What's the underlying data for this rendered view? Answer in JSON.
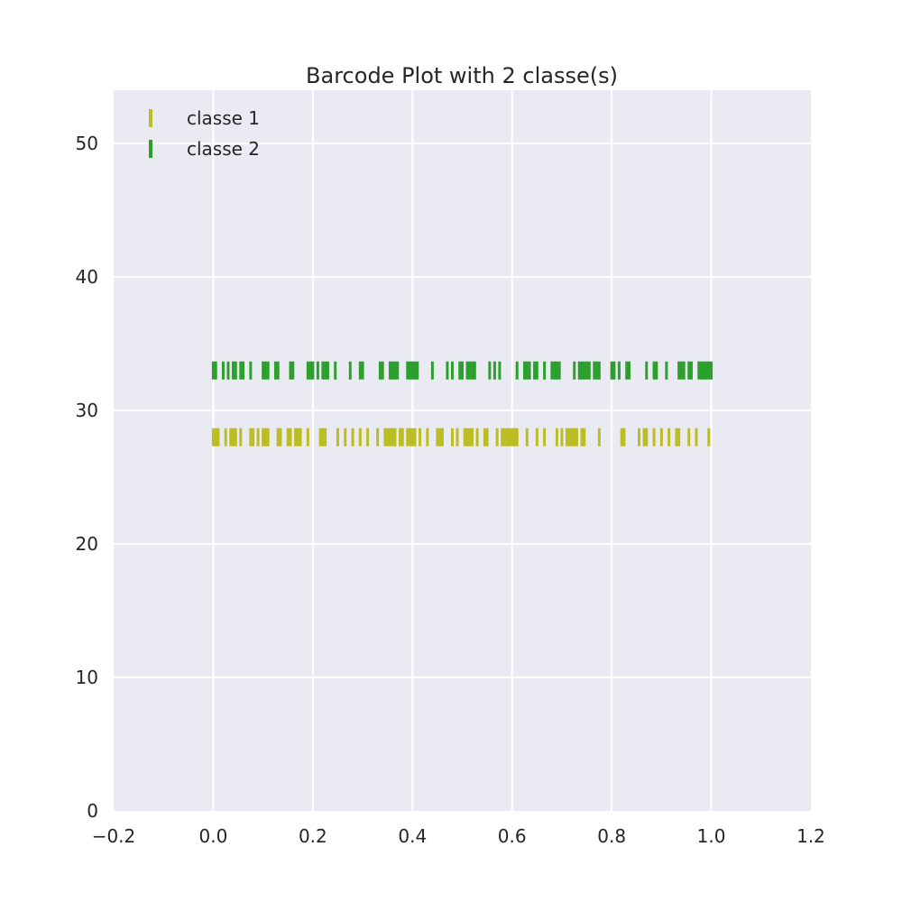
{
  "chart_data": {
    "type": "scatter",
    "title": "Barcode Plot with 2 classe(s)",
    "xlabel": "",
    "ylabel": "",
    "xlim": [
      -0.2,
      1.2
    ],
    "ylim": [
      0,
      54
    ],
    "x_ticks": [
      "−0.2",
      "0.0",
      "0.2",
      "0.4",
      "0.6",
      "0.8",
      "1.0",
      "1.2"
    ],
    "x_tick_values": [
      -0.2,
      0.0,
      0.2,
      0.4,
      0.6,
      0.8,
      1.0,
      1.2
    ],
    "y_ticks": [
      "0",
      "10",
      "20",
      "30",
      "40",
      "50"
    ],
    "y_tick_values": [
      0,
      10,
      20,
      30,
      40,
      50
    ],
    "grid": true,
    "legend_position": "top-left",
    "series": [
      {
        "name": "classe 1",
        "color": "#bcbd22",
        "y": 28,
        "x": [
          0.0,
          0.005,
          0.01,
          0.025,
          0.035,
          0.04,
          0.045,
          0.055,
          0.075,
          0.08,
          0.09,
          0.1,
          0.105,
          0.11,
          0.13,
          0.135,
          0.15,
          0.155,
          0.165,
          0.17,
          0.175,
          0.19,
          0.215,
          0.22,
          0.225,
          0.25,
          0.265,
          0.28,
          0.295,
          0.31,
          0.33,
          0.345,
          0.35,
          0.355,
          0.36,
          0.365,
          0.375,
          0.38,
          0.39,
          0.395,
          0.4,
          0.405,
          0.415,
          0.43,
          0.45,
          0.455,
          0.46,
          0.48,
          0.49,
          0.505,
          0.51,
          0.515,
          0.52,
          0.53,
          0.545,
          0.55,
          0.57,
          0.58,
          0.585,
          0.59,
          0.595,
          0.6,
          0.605,
          0.61,
          0.63,
          0.65,
          0.665,
          0.69,
          0.7,
          0.71,
          0.715,
          0.72,
          0.725,
          0.73,
          0.74,
          0.745,
          0.775,
          0.82,
          0.825,
          0.855,
          0.865,
          0.87,
          0.885,
          0.9,
          0.915,
          0.93,
          0.935,
          0.955,
          0.97,
          0.995
        ]
      },
      {
        "name": "classe 2",
        "color": "#2ca02c",
        "y": 33,
        "x": [
          0.0,
          0.005,
          0.02,
          0.03,
          0.04,
          0.045,
          0.055,
          0.06,
          0.075,
          0.1,
          0.105,
          0.11,
          0.125,
          0.13,
          0.155,
          0.16,
          0.19,
          0.195,
          0.2,
          0.21,
          0.22,
          0.225,
          0.23,
          0.245,
          0.275,
          0.295,
          0.3,
          0.335,
          0.34,
          0.355,
          0.36,
          0.365,
          0.37,
          0.39,
          0.395,
          0.4,
          0.405,
          0.41,
          0.44,
          0.47,
          0.48,
          0.495,
          0.5,
          0.51,
          0.515,
          0.52,
          0.525,
          0.555,
          0.565,
          0.575,
          0.61,
          0.625,
          0.63,
          0.635,
          0.645,
          0.65,
          0.665,
          0.68,
          0.685,
          0.69,
          0.695,
          0.725,
          0.735,
          0.74,
          0.745,
          0.75,
          0.755,
          0.765,
          0.77,
          0.775,
          0.8,
          0.805,
          0.815,
          0.83,
          0.835,
          0.87,
          0.885,
          0.89,
          0.91,
          0.935,
          0.94,
          0.945,
          0.955,
          0.96,
          0.975,
          0.98,
          0.985,
          0.99,
          0.995,
          1.0
        ]
      }
    ]
  }
}
